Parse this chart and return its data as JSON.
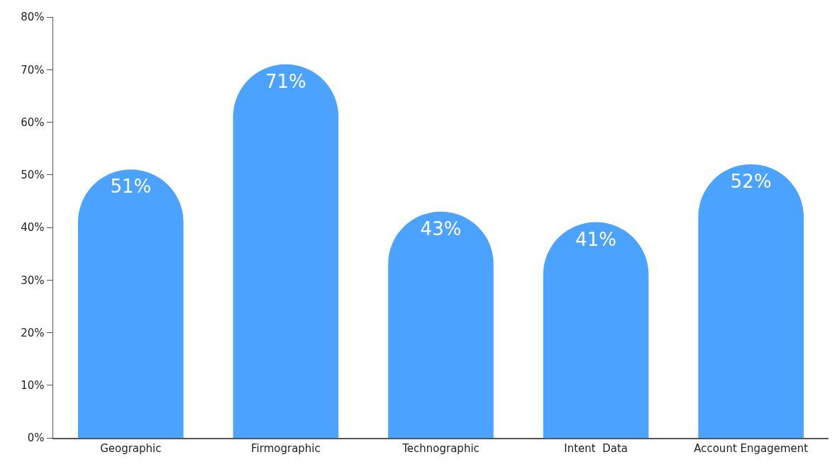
{
  "chart_data": {
    "type": "bar",
    "categories": [
      "Geographic",
      "Firmographic",
      "Technographic",
      "Intent  Data",
      "Account Engagement"
    ],
    "values": [
      51,
      71,
      43,
      41,
      52
    ],
    "value_labels": [
      "51%",
      "71%",
      "43%",
      "41%",
      "52%"
    ],
    "color": "#4ba3ff",
    "ylim": [
      0,
      80
    ],
    "yticks": [
      {
        "value": 0,
        "label": "0%"
      },
      {
        "value": 10,
        "label": "10%"
      },
      {
        "value": 20,
        "label": "20%"
      },
      {
        "value": 30,
        "label": "30%"
      },
      {
        "value": 40,
        "label": "40%"
      },
      {
        "value": 50,
        "label": "50%"
      },
      {
        "value": 60,
        "label": "60%"
      },
      {
        "value": 70,
        "label": "70%"
      },
      {
        "value": 80,
        "label": "80%"
      }
    ],
    "grid": false
  }
}
